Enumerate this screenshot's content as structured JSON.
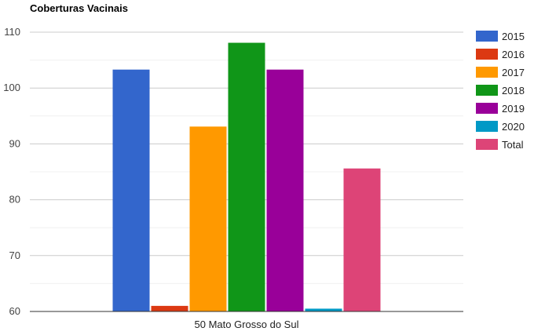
{
  "chart_data": {
    "type": "bar",
    "title": "Coberturas Vacinais",
    "categories": [
      "50 Mato Grosso do Sul"
    ],
    "series": [
      {
        "name": "2015",
        "values": [
          103.3
        ],
        "color": "#3366cc"
      },
      {
        "name": "2016",
        "values": [
          61.0
        ],
        "color": "#dc3912"
      },
      {
        "name": "2017",
        "values": [
          93.1
        ],
        "color": "#ff9900"
      },
      {
        "name": "2018",
        "values": [
          108.1
        ],
        "color": "#109618"
      },
      {
        "name": "2019",
        "values": [
          103.3
        ],
        "color": "#990099"
      },
      {
        "name": "2020",
        "values": [
          60.5
        ],
        "color": "#0099c6"
      },
      {
        "name": "Total",
        "values": [
          85.6
        ],
        "color": "#dd4477"
      }
    ],
    "ylim": [
      60,
      110
    ],
    "yticks": [
      60,
      70,
      80,
      90,
      100,
      110
    ],
    "grid": true,
    "legend": "right"
  }
}
